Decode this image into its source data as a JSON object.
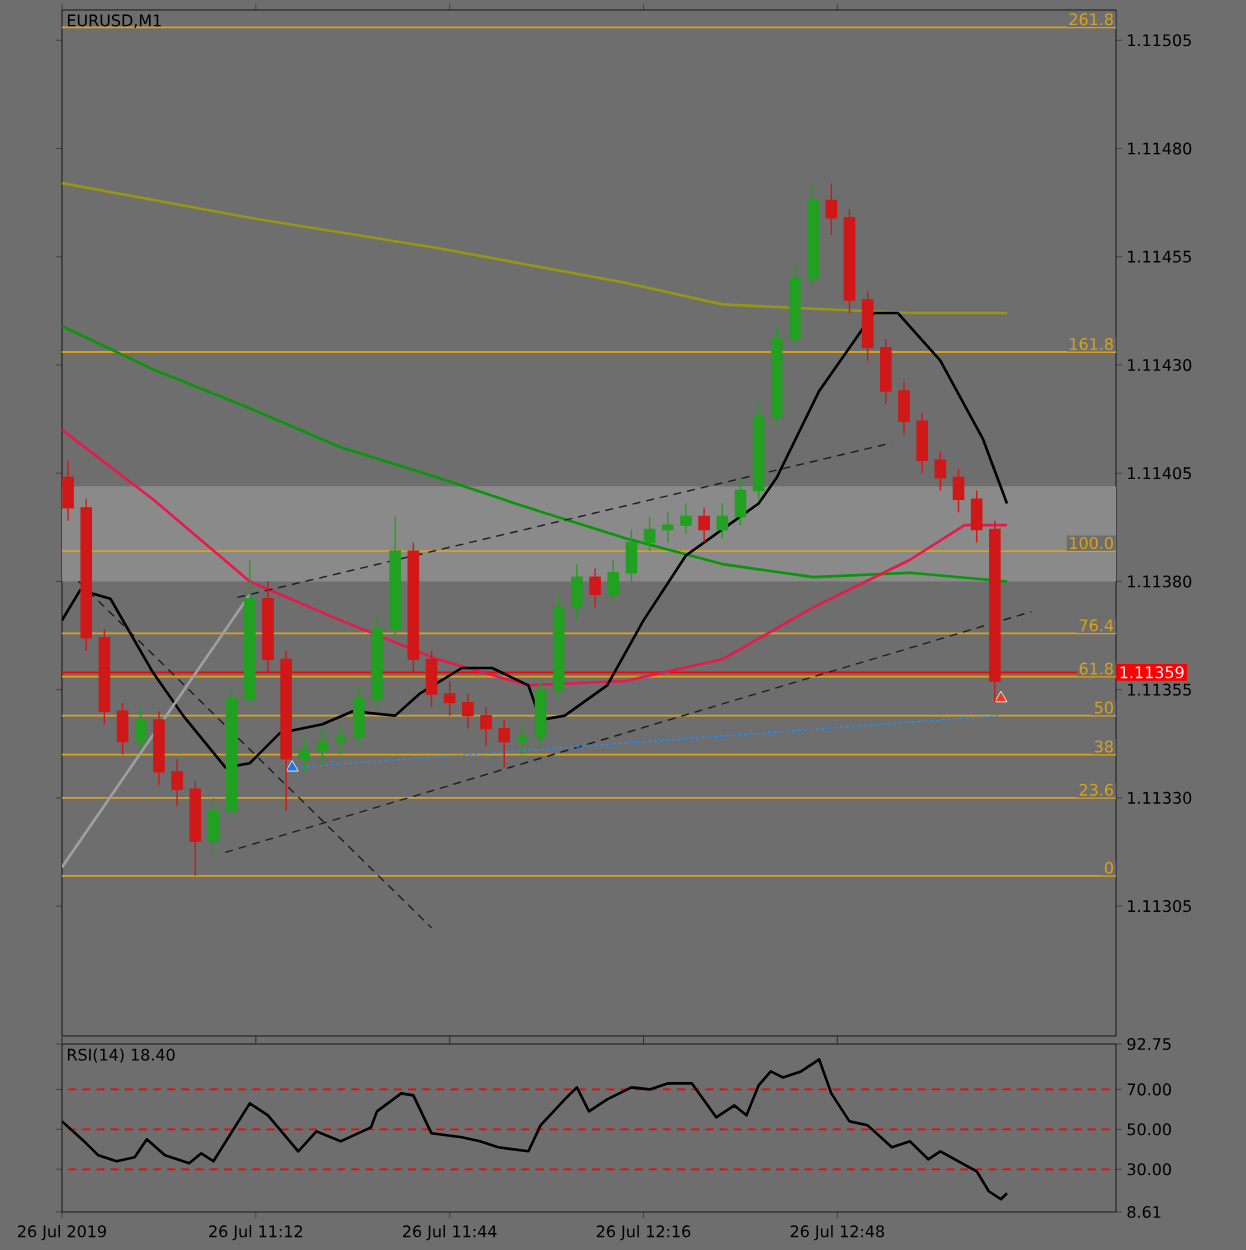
{
  "chart_data": [
    {
      "type": "candlestick",
      "title": "EURUSD,M1",
      "xlim": [
        "2019-07-26T10:40",
        "2019-07-26T13:34"
      ],
      "xticks": [
        {
          "value": "2019-07-26T10:40",
          "label": null
        },
        {
          "value": "2019-07-26T11:12",
          "label": null
        },
        {
          "value": "2019-07-26T11:44",
          "label": null
        },
        {
          "value": "2019-07-26T12:16",
          "label": null
        },
        {
          "value": "2019-07-26T12:48",
          "label": null
        }
      ],
      "ylim": [
        1.11275,
        1.11512
      ],
      "yticks": [
        {
          "value": 1.11305,
          "label": "1.11305"
        },
        {
          "value": 1.1133,
          "label": "1.11330"
        },
        {
          "value": 1.11355,
          "label": "1.11355"
        },
        {
          "value": 1.1138,
          "label": "1.11380"
        },
        {
          "value": 1.11405,
          "label": "1.11405"
        },
        {
          "value": 1.1143,
          "label": "1.11430"
        },
        {
          "value": 1.11455,
          "label": "1.11455"
        },
        {
          "value": 1.1148,
          "label": "1.11480"
        },
        {
          "value": 1.11505,
          "label": "1.11505"
        }
      ],
      "tick_labels": "y",
      "x": [
        "2019-07-26T10:41",
        "2019-07-26T10:44",
        "2019-07-26T10:47",
        "2019-07-26T10:50",
        "2019-07-26T10:53",
        "2019-07-26T10:56",
        "2019-07-26T10:59",
        "2019-07-26T11:02",
        "2019-07-26T11:05",
        "2019-07-26T11:08",
        "2019-07-26T11:11",
        "2019-07-26T11:14",
        "2019-07-26T11:17",
        "2019-07-26T11:20",
        "2019-07-26T11:23",
        "2019-07-26T11:26",
        "2019-07-26T11:29",
        "2019-07-26T11:32",
        "2019-07-26T11:35",
        "2019-07-26T11:38",
        "2019-07-26T11:41",
        "2019-07-26T11:44",
        "2019-07-26T11:47",
        "2019-07-26T11:50",
        "2019-07-26T11:53",
        "2019-07-26T11:56",
        "2019-07-26T11:59",
        "2019-07-26T12:02",
        "2019-07-26T12:05",
        "2019-07-26T12:08",
        "2019-07-26T12:11",
        "2019-07-26T12:14",
        "2019-07-26T12:17",
        "2019-07-26T12:20",
        "2019-07-26T12:23",
        "2019-07-26T12:26",
        "2019-07-26T12:29",
        "2019-07-26T12:32",
        "2019-07-26T12:35",
        "2019-07-26T12:38",
        "2019-07-26T12:41",
        "2019-07-26T12:44",
        "2019-07-26T12:47",
        "2019-07-26T12:50",
        "2019-07-26T12:53",
        "2019-07-26T12:56",
        "2019-07-26T12:59",
        "2019-07-26T13:02",
        "2019-07-26T13:05",
        "2019-07-26T13:08",
        "2019-07-26T13:11",
        "2019-07-26T13:14"
      ],
      "ohlc": [
        [
          1.11404,
          1.11408,
          1.11394,
          1.11397
        ],
        [
          1.11397,
          1.11399,
          1.11364,
          1.11367
        ],
        [
          1.11367,
          1.11369,
          1.11347,
          1.1135
        ],
        [
          1.1135,
          1.11352,
          1.1134,
          1.11343
        ],
        [
          1.11343,
          1.11351,
          1.11341,
          1.11348
        ],
        [
          1.11348,
          1.1135,
          1.11333,
          1.11336
        ],
        [
          1.11336,
          1.11339,
          1.11328,
          1.11332
        ],
        [
          1.11332,
          1.11334,
          1.11312,
          1.1132
        ],
        [
          1.1132,
          1.1133,
          1.11316,
          1.11327
        ],
        [
          1.11327,
          1.11356,
          1.11325,
          1.11353
        ],
        [
          1.11353,
          1.11385,
          1.11351,
          1.11376
        ],
        [
          1.11376,
          1.1138,
          1.11359,
          1.11362
        ],
        [
          1.11362,
          1.11364,
          1.11327,
          1.11339
        ],
        [
          1.11339,
          1.11344,
          1.11336,
          1.11341
        ],
        [
          1.11341,
          1.11346,
          1.11338,
          1.11343
        ],
        [
          1.11343,
          1.11347,
          1.1134,
          1.11344
        ],
        [
          1.11344,
          1.11356,
          1.11342,
          1.11353
        ],
        [
          1.11353,
          1.11372,
          1.11351,
          1.11369
        ],
        [
          1.11369,
          1.11395,
          1.11367,
          1.11387
        ],
        [
          1.11387,
          1.11389,
          1.11359,
          1.11362
        ],
        [
          1.11362,
          1.11364,
          1.11351,
          1.11354
        ],
        [
          1.11354,
          1.11357,
          1.11349,
          1.11352
        ],
        [
          1.11352,
          1.11354,
          1.11346,
          1.11349
        ],
        [
          1.11349,
          1.11351,
          1.11342,
          1.11346
        ],
        [
          1.11346,
          1.11348,
          1.11337,
          1.11343
        ],
        [
          1.11343,
          1.11347,
          1.1134,
          1.11344
        ],
        [
          1.11344,
          1.11357,
          1.11342,
          1.11355
        ],
        [
          1.11355,
          1.11377,
          1.11353,
          1.11374
        ],
        [
          1.11374,
          1.11384,
          1.11371,
          1.11381
        ],
        [
          1.11381,
          1.11383,
          1.11374,
          1.11377
        ],
        [
          1.11377,
          1.11385,
          1.11375,
          1.11382
        ],
        [
          1.11382,
          1.11392,
          1.1138,
          1.11389
        ],
        [
          1.11389,
          1.11395,
          1.11387,
          1.11392
        ],
        [
          1.11392,
          1.11396,
          1.11389,
          1.11393
        ],
        [
          1.11393,
          1.11398,
          1.11391,
          1.11395
        ],
        [
          1.11395,
          1.11397,
          1.11389,
          1.11392
        ],
        [
          1.11392,
          1.11398,
          1.1139,
          1.11395
        ],
        [
          1.11395,
          1.11404,
          1.11393,
          1.11401
        ],
        [
          1.11401,
          1.11421,
          1.11399,
          1.11418
        ],
        [
          1.11418,
          1.11439,
          1.11416,
          1.11436
        ],
        [
          1.11436,
          1.11453,
          1.11434,
          1.1145
        ],
        [
          1.1145,
          1.11472,
          1.11448,
          1.11468
        ],
        [
          1.11468,
          1.11472,
          1.1146,
          1.11464
        ],
        [
          1.11464,
          1.11466,
          1.11442,
          1.11445
        ],
        [
          1.11445,
          1.11447,
          1.11431,
          1.11434
        ],
        [
          1.11434,
          1.11436,
          1.11421,
          1.11424
        ],
        [
          1.11424,
          1.11426,
          1.11414,
          1.11417
        ],
        [
          1.11417,
          1.11419,
          1.11405,
          1.11408
        ],
        [
          1.11408,
          1.1141,
          1.11401,
          1.11404
        ],
        [
          1.11404,
          1.11406,
          1.11396,
          1.11399
        ],
        [
          1.11399,
          1.11401,
          1.11389,
          1.11392
        ],
        [
          1.11392,
          1.11394,
          1.11352,
          1.11357
        ]
      ],
      "colors": [
        "#d01818",
        "#d01818",
        "#d01818",
        "#d01818",
        "#22a022",
        "#d01818",
        "#d01818",
        "#d01818",
        "#22a022",
        "#22a022",
        "#22a022",
        "#d01818",
        "#d01818",
        "#22a022",
        "#22a022",
        "#22a022",
        "#22a022",
        "#22a022",
        "#22a022",
        "#d01818",
        "#d01818",
        "#d01818",
        "#d01818",
        "#d01818",
        "#d01818",
        "#22a022",
        "#22a022",
        "#22a022",
        "#22a022",
        "#d01818",
        "#22a022",
        "#22a022",
        "#22a022",
        "#22a022",
        "#22a022",
        "#d01818",
        "#22a022",
        "#22a022",
        "#22a022",
        "#22a022",
        "#22a022",
        "#22a022",
        "#d01818",
        "#d01818",
        "#d01818",
        "#d01818",
        "#d01818",
        "#d01818",
        "#d01818",
        "#d01818",
        "#d01818",
        "#d01818"
      ],
      "bands": [
        {
          "axis": "y",
          "from": 1.1138,
          "to": 1.11402,
          "color": "#8a8a8a"
        }
      ],
      "ref_lines": [
        {
          "axis": "y",
          "value": 1.11508,
          "color": "#d9a21b"
        },
        {
          "axis": "y",
          "value": 1.11433,
          "color": "#d9a21b"
        },
        {
          "axis": "y",
          "value": 1.11387,
          "color": "#d9a21b"
        },
        {
          "axis": "y",
          "value": 1.11368,
          "color": "#d9a21b"
        },
        {
          "axis": "y",
          "value": 1.11358,
          "color": "#d9a21b"
        },
        {
          "axis": "y",
          "value": 1.11349,
          "color": "#d9a21b"
        },
        {
          "axis": "y",
          "value": 1.1134,
          "color": "#d9a21b"
        },
        {
          "axis": "y",
          "value": 1.1133,
          "color": "#d9a21b"
        },
        {
          "axis": "y",
          "value": 1.11312,
          "color": "#d9a21b"
        },
        {
          "axis": "y",
          "value": 1.11359,
          "label": "1.11359",
          "color": "#ff0000"
        }
      ],
      "annotations": [
        "261.8",
        "161.8",
        "100.0",
        "76.4",
        "61.8",
        "50",
        "38",
        "23.6",
        "0"
      ],
      "series": [
        {
          "type": "line",
          "color": "#969614",
          "x": [
            "2019-07-26T10:40",
            "2019-07-26T11:11",
            "2019-07-26T11:42",
            "2019-07-26T12:13",
            "2019-07-26T12:29",
            "2019-07-26T12:44",
            "2019-07-26T13:00",
            "2019-07-26T13:16"
          ],
          "values": [
            1.11472,
            1.11464,
            1.11457,
            1.11449,
            1.11444,
            1.11443,
            1.11442,
            1.11442
          ]
        },
        {
          "type": "line",
          "color": "#0a960a",
          "x": [
            "2019-07-26T10:40",
            "2019-07-26T10:55",
            "2019-07-26T11:11",
            "2019-07-26T11:26",
            "2019-07-26T11:42",
            "2019-07-26T11:57",
            "2019-07-26T12:13",
            "2019-07-26T12:29",
            "2019-07-26T12:44",
            "2019-07-26T13:00",
            "2019-07-26T13:16"
          ],
          "values": [
            1.11439,
            1.11429,
            1.1142,
            1.11411,
            1.11404,
            1.11397,
            1.1139,
            1.11384,
            1.11381,
            1.11382,
            1.1138
          ]
        },
        {
          "type": "line",
          "color": "#e8194b",
          "x": [
            "2019-07-26T10:40",
            "2019-07-26T10:55",
            "2019-07-26T11:11",
            "2019-07-26T11:26",
            "2019-07-26T11:42",
            "2019-07-26T11:57",
            "2019-07-26T12:13",
            "2019-07-26T12:29",
            "2019-07-26T12:44",
            "2019-07-26T13:00",
            "2019-07-26T13:09",
            "2019-07-26T13:16"
          ],
          "values": [
            1.11415,
            1.11399,
            1.1138,
            1.11371,
            1.11362,
            1.11356,
            1.11357,
            1.11362,
            1.11374,
            1.11385,
            1.11393,
            1.11393
          ]
        },
        {
          "type": "line",
          "color": "#000000",
          "x": [
            "2019-07-26T10:40",
            "2019-07-26T10:43",
            "2019-07-26T10:48",
            "2019-07-26T10:55",
            "2019-07-26T11:00",
            "2019-07-26T11:07",
            "2019-07-26T11:11",
            "2019-07-26T11:16",
            "2019-07-26T11:23",
            "2019-07-26T11:28",
            "2019-07-26T11:35",
            "2019-07-26T11:39",
            "2019-07-26T11:46",
            "2019-07-26T11:51",
            "2019-07-26T11:57",
            "2019-07-26T11:59",
            "2019-07-26T12:03",
            "2019-07-26T12:10",
            "2019-07-26T12:16",
            "2019-07-26T12:23",
            "2019-07-26T12:30",
            "2019-07-26T12:35",
            "2019-07-26T12:38",
            "2019-07-26T12:45",
            "2019-07-26T12:54",
            "2019-07-26T12:58",
            "2019-07-26T13:05",
            "2019-07-26T13:12",
            "2019-07-26T13:16"
          ],
          "values": [
            1.11371,
            1.11378,
            1.11376,
            1.11359,
            1.11349,
            1.11337,
            1.11338,
            1.11345,
            1.11347,
            1.1135,
            1.11349,
            1.11354,
            1.1136,
            1.1136,
            1.11356,
            1.11348,
            1.11349,
            1.11356,
            1.11371,
            1.11386,
            1.11393,
            1.11398,
            1.11404,
            1.11424,
            1.11442,
            1.11442,
            1.11431,
            1.11413,
            1.11398
          ]
        },
        {
          "type": "line",
          "color": "#1e1e1e",
          "line_style": "dashed",
          "x": [
            "2019-07-26T11:08",
            "2019-07-26T12:57"
          ],
          "values": [
            1.11376,
            1.11412
          ]
        },
        {
          "type": "line",
          "color": "#1e1e1e",
          "line_style": "dashed",
          "x": [
            "2019-07-26T11:06",
            "2019-07-26T13:20"
          ],
          "values": [
            1.11317,
            1.11373
          ]
        },
        {
          "type": "line",
          "color": "#1e1e1e",
          "line_style": "dashed",
          "x": [
            "2019-07-26T10:42",
            "2019-07-26T11:41"
          ],
          "values": [
            1.11381,
            1.113
          ]
        },
        {
          "type": "line",
          "color": "#a0a0a0",
          "x": [
            "2019-07-26T10:40",
            "2019-07-26T11:11"
          ],
          "values": [
            1.11314,
            1.11377
          ]
        },
        {
          "type": "line",
          "color": "#1e90ff",
          "line_style": "dotted",
          "x": [
            "2019-07-26T11:18",
            "2019-07-26T13:15"
          ],
          "values": [
            1.11337,
            1.11349
          ]
        },
        {
          "type": "scatter",
          "marker": "triangle",
          "color": "#1e78dc",
          "x": [
            "2019-07-26T11:18"
          ],
          "values": [
            1.11337
          ]
        },
        {
          "type": "scatter",
          "marker": "triangle",
          "color": "#e83c1e",
          "x": [
            "2019-07-26T13:15"
          ],
          "values": [
            1.11353
          ]
        }
      ]
    },
    {
      "type": "line",
      "title": "RSI(14) 18.40",
      "xlim": [
        "2019-07-26T10:40",
        "2019-07-26T13:34"
      ],
      "xticks": [
        {
          "value": "2019-07-26T10:40",
          "label": "26 Jul 2019"
        },
        {
          "value": "2019-07-26T11:12",
          "label": "26 Jul 11:12"
        },
        {
          "value": "2019-07-26T11:44",
          "label": "26 Jul 11:44"
        },
        {
          "value": "2019-07-26T12:16",
          "label": "26 Jul 12:16"
        },
        {
          "value": "2019-07-26T12:48",
          "label": "26 Jul 12:48"
        }
      ],
      "ylim": [
        8.61,
        92.75
      ],
      "yticks": [
        92.75,
        {
          "value": 70,
          "label": "70.00"
        },
        {
          "value": 50,
          "label": "50.00"
        },
        {
          "value": 30,
          "label": "30.00"
        },
        8.61
      ],
      "ref_lines": [
        {
          "axis": "y",
          "value": 70,
          "color": "#ff0000",
          "line_style": "dashed"
        },
        {
          "axis": "y",
          "value": 50,
          "color": "#ff0000",
          "line_style": "dashed"
        },
        {
          "axis": "y",
          "value": 30,
          "color": "#ff0000",
          "line_style": "dashed"
        }
      ],
      "series": [
        {
          "color": "#000000",
          "x": [
            "2019-07-26T10:40",
            "2019-07-26T10:44",
            "2019-07-26T10:46",
            "2019-07-26T10:49",
            "2019-07-26T10:52",
            "2019-07-26T10:54",
            "2019-07-26T10:57",
            "2019-07-26T11:01",
            "2019-07-26T11:03",
            "2019-07-26T11:05",
            "2019-07-26T11:11",
            "2019-07-26T11:14",
            "2019-07-26T11:19",
            "2019-07-26T11:22",
            "2019-07-26T11:26",
            "2019-07-26T11:31",
            "2019-07-26T11:32",
            "2019-07-26T11:36",
            "2019-07-26T11:38",
            "2019-07-26T11:41",
            "2019-07-26T11:46",
            "2019-07-26T11:49",
            "2019-07-26T11:52",
            "2019-07-26T11:57",
            "2019-07-26T11:59",
            "2019-07-26T12:03",
            "2019-07-26T12:05",
            "2019-07-26T12:07",
            "2019-07-26T12:10",
            "2019-07-26T12:14",
            "2019-07-26T12:17",
            "2019-07-26T12:20",
            "2019-07-26T12:24",
            "2019-07-26T12:28",
            "2019-07-26T12:31",
            "2019-07-26T12:33",
            "2019-07-26T12:35",
            "2019-07-26T12:37",
            "2019-07-26T12:39",
            "2019-07-26T12:42",
            "2019-07-26T12:45",
            "2019-07-26T12:47",
            "2019-07-26T12:50",
            "2019-07-26T12:53",
            "2019-07-26T12:57",
            "2019-07-26T13:00",
            "2019-07-26T13:03",
            "2019-07-26T13:05",
            "2019-07-26T13:11",
            "2019-07-26T13:13",
            "2019-07-26T13:15",
            "2019-07-26T13:16"
          ],
          "values": [
            54,
            43,
            37,
            34,
            36,
            45,
            37,
            33,
            38,
            34,
            63,
            57,
            39,
            49,
            44,
            51,
            59,
            68,
            67,
            48,
            46,
            44,
            41,
            39,
            52,
            65,
            71,
            59,
            65,
            71,
            70,
            73,
            73,
            56,
            62,
            57,
            72,
            79,
            76,
            79,
            85,
            68,
            54,
            52,
            41,
            44,
            35,
            39,
            29,
            19,
            15,
            18
          ]
        }
      ]
    }
  ]
}
